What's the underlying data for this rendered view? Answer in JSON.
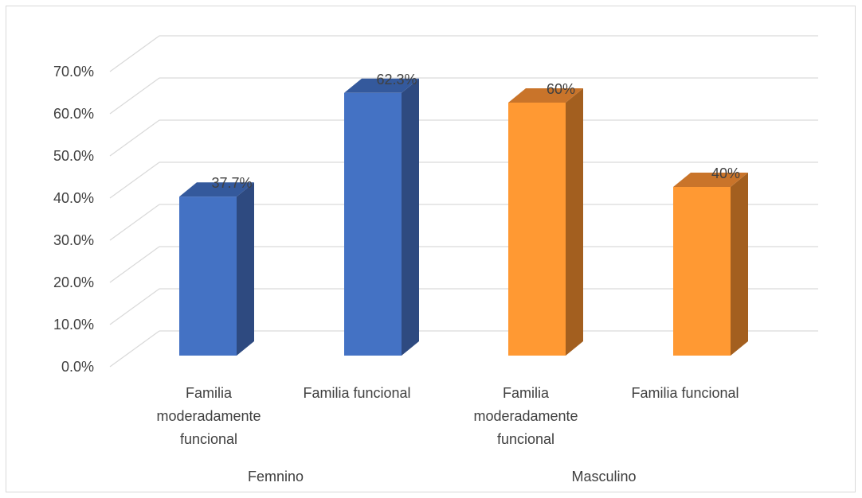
{
  "chart_data": {
    "type": "bar",
    "style": "3d-column",
    "title": "",
    "xlabel": "",
    "ylabel": "",
    "ylim": [
      0,
      70
    ],
    "y_tick_labels": [
      "0.0%",
      "10.0%",
      "20.0%",
      "30.0%",
      "40.0%",
      "50.0%",
      "60.0%",
      "70.0%"
    ],
    "y_ticks": [
      0,
      10,
      20,
      30,
      40,
      50,
      60,
      70
    ],
    "grid": true,
    "legend": "none",
    "groups": [
      "Femnino",
      "Masculino"
    ],
    "categories": [
      [
        "Familia",
        "moderadamente",
        "funcional"
      ],
      [
        "Familia funcional"
      ],
      [
        "Familia",
        "moderadamente",
        "funcional"
      ],
      [
        "Familia funcional"
      ]
    ],
    "values": [
      37.7,
      62.3,
      60,
      40
    ],
    "data_labels": [
      "37.7%",
      "62.3%",
      "60%",
      "40%"
    ],
    "bar_colors": [
      {
        "front": "#4472c4",
        "side": "#2e4a80",
        "top": "#34599c"
      },
      {
        "front": "#4472c4",
        "side": "#2e4a80",
        "top": "#34599c"
      },
      {
        "front": "#ff9933",
        "side": "#a35f1f",
        "top": "#c9742a"
      },
      {
        "front": "#ff9933",
        "side": "#a35f1f",
        "top": "#c9742a"
      }
    ]
  }
}
